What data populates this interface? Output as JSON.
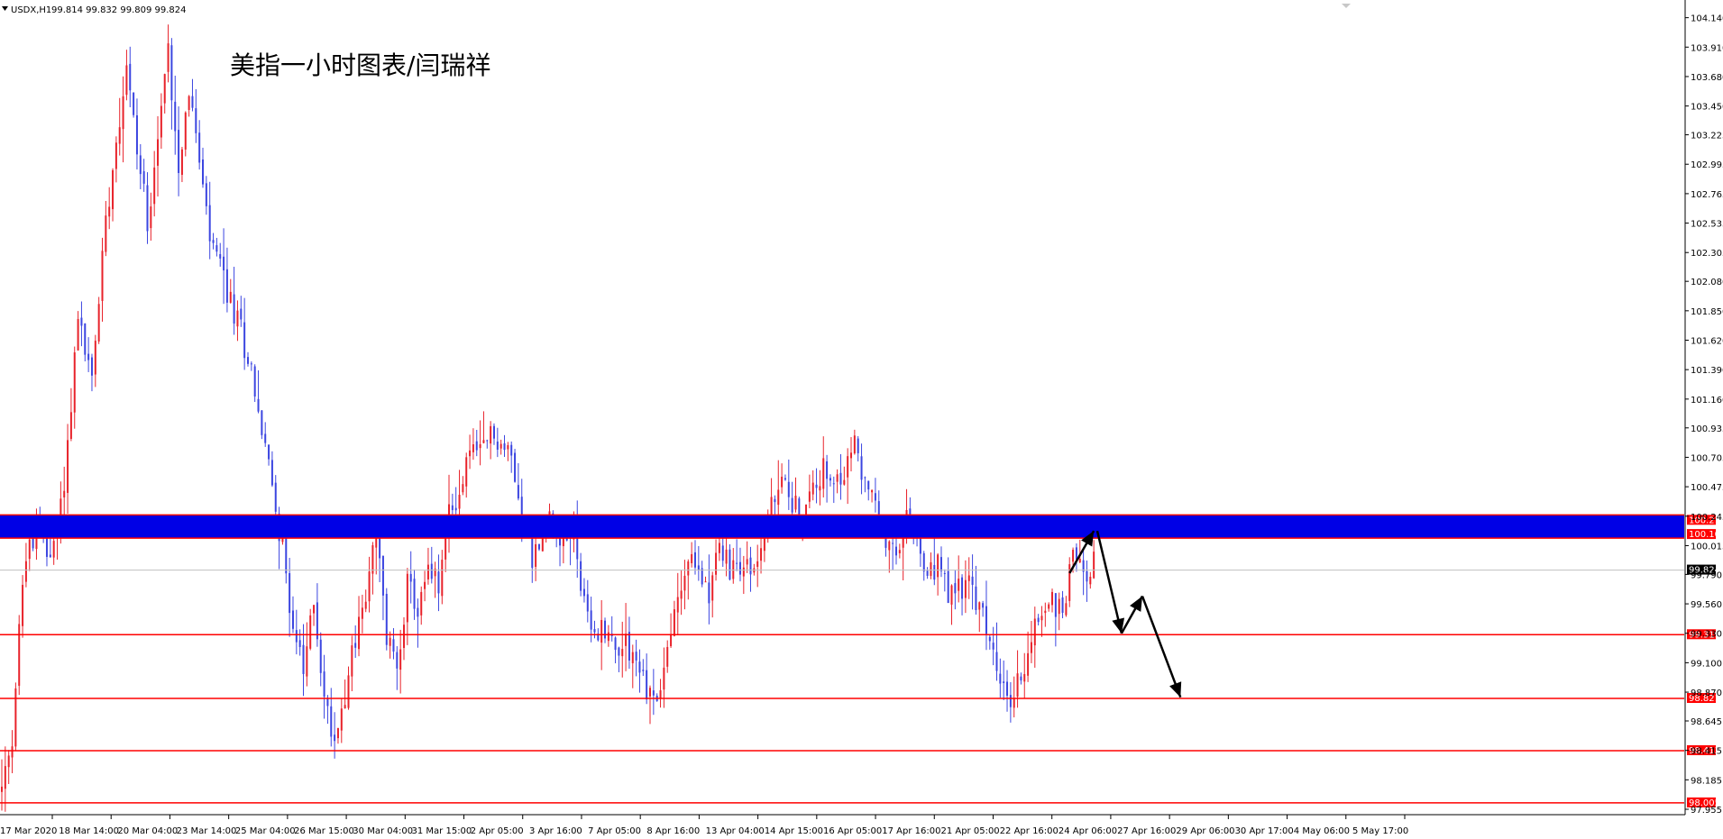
{
  "header": {
    "symbol": "USDX,H1",
    "ohlc": "99.814 99.832 99.809 99.824",
    "title": "美指一小时图表/闫瑞祥"
  },
  "colors": {
    "bull": "#e8222a",
    "bear": "#3b45e0",
    "zone": "#0000e6",
    "zone_border": "#ff0000",
    "level": "#ff0000",
    "arrow": "#000000",
    "current_label_bg": "#000000"
  },
  "chart_data": {
    "type": "candlestick",
    "symbol": "USDX",
    "timeframe": "H1",
    "ylim": [
      97.955,
      104.25
    ],
    "y_ticks": [
      104.14,
      103.91,
      103.68,
      103.45,
      103.225,
      102.995,
      102.765,
      102.535,
      102.305,
      102.08,
      101.85,
      101.62,
      101.39,
      101.16,
      100.935,
      100.705,
      100.475,
      100.245,
      100.015,
      99.79,
      99.56,
      99.33,
      99.1,
      98.87,
      98.645,
      98.415,
      98.185,
      97.955
    ],
    "x_tick_labels": [
      "17 Mar 2020",
      "18 Mar 14:00",
      "20 Mar 04:00",
      "23 Mar 14:00",
      "25 Mar 04:00",
      "26 Mar 15:00",
      "30 Mar 04:00",
      "31 Mar 15:00",
      "2 Apr 05:00",
      "3 Apr 16:00",
      "7 Apr 05:00",
      "8 Apr 16:00",
      "13 Apr 04:00",
      "14 Apr 15:00",
      "16 Apr 05:00",
      "17 Apr 16:00",
      "21 Apr 05:00",
      "22 Apr 16:00",
      "24 Apr 06:00",
      "27 Apr 16:00",
      "29 Apr 06:00",
      "30 Apr 17:00",
      "4 May 06:00",
      "5 May 17:00"
    ],
    "close_path": [
      [
        0,
        98.1
      ],
      [
        3,
        98.4
      ],
      [
        6,
        99.8
      ],
      [
        10,
        100.2
      ],
      [
        14,
        99.9
      ],
      [
        18,
        100.5
      ],
      [
        22,
        101.8
      ],
      [
        26,
        101.3
      ],
      [
        30,
        102.6
      ],
      [
        33,
        103.2
      ],
      [
        36,
        103.8
      ],
      [
        39,
        103.1
      ],
      [
        42,
        102.6
      ],
      [
        45,
        103.2
      ],
      [
        48,
        103.9
      ],
      [
        51,
        103.0
      ],
      [
        54,
        103.6
      ],
      [
        57,
        103.0
      ],
      [
        60,
        102.4
      ],
      [
        63,
        102.2
      ],
      [
        66,
        101.9
      ],
      [
        69,
        101.7
      ],
      [
        72,
        101.4
      ],
      [
        75,
        100.9
      ],
      [
        78,
        100.5
      ],
      [
        81,
        100.0
      ],
      [
        84,
        99.4
      ],
      [
        87,
        99.0
      ],
      [
        90,
        99.6
      ],
      [
        93,
        98.8
      ],
      [
        96,
        98.5
      ],
      [
        99,
        98.9
      ],
      [
        102,
        99.3
      ],
      [
        105,
        99.6
      ],
      [
        108,
        100.1
      ],
      [
        111,
        99.3
      ],
      [
        114,
        99.1
      ],
      [
        117,
        99.7
      ],
      [
        120,
        99.5
      ],
      [
        123,
        99.8
      ],
      [
        126,
        99.7
      ],
      [
        129,
        100.3
      ],
      [
        132,
        100.4
      ],
      [
        135,
        100.8
      ],
      [
        138,
        100.7
      ],
      [
        141,
        100.9
      ],
      [
        144,
        100.8
      ],
      [
        147,
        100.7
      ],
      [
        150,
        100.3
      ],
      [
        153,
        99.9
      ],
      [
        156,
        100.1
      ],
      [
        159,
        100.3
      ],
      [
        162,
        100.0
      ],
      [
        165,
        100.2
      ],
      [
        168,
        99.5
      ],
      [
        171,
        99.3
      ],
      [
        174,
        99.4
      ],
      [
        177,
        99.2
      ],
      [
        180,
        99.3
      ],
      [
        183,
        99.1
      ],
      [
        186,
        98.9
      ],
      [
        189,
        98.8
      ],
      [
        192,
        99.2
      ],
      [
        195,
        99.6
      ],
      [
        198,
        99.9
      ],
      [
        201,
        99.8
      ],
      [
        204,
        99.7
      ],
      [
        207,
        100.0
      ],
      [
        210,
        99.8
      ],
      [
        213,
        99.9
      ],
      [
        216,
        99.8
      ],
      [
        219,
        100.0
      ],
      [
        222,
        100.3
      ],
      [
        225,
        100.5
      ],
      [
        228,
        100.4
      ],
      [
        231,
        100.2
      ],
      [
        234,
        100.5
      ],
      [
        237,
        100.6
      ],
      [
        240,
        100.4
      ],
      [
        243,
        100.6
      ],
      [
        246,
        100.8
      ],
      [
        249,
        100.5
      ],
      [
        252,
        100.3
      ],
      [
        255,
        100.0
      ],
      [
        258,
        99.9
      ],
      [
        261,
        100.2
      ],
      [
        264,
        100.1
      ],
      [
        267,
        99.7
      ],
      [
        270,
        99.9
      ],
      [
        273,
        99.6
      ],
      [
        276,
        99.7
      ],
      [
        279,
        99.7
      ],
      [
        282,
        99.5
      ],
      [
        285,
        99.3
      ],
      [
        288,
        98.9
      ],
      [
        291,
        98.8
      ],
      [
        294,
        99.0
      ],
      [
        297,
        99.3
      ],
      [
        300,
        99.5
      ],
      [
        303,
        99.6
      ],
      [
        306,
        99.5
      ],
      [
        309,
        100.0
      ],
      [
        312,
        99.8
      ],
      [
        315,
        99.9
      ]
    ],
    "levels": [
      100.213,
      100.102,
      99.319,
      98.821,
      98.413,
      98.005
    ],
    "level_labels": [
      "100.213",
      "100.102",
      "99.319",
      "98.821",
      "98.413",
      "98.005"
    ],
    "zone": [
      100.102,
      100.213
    ],
    "current_price": 99.824,
    "current_label": "99.824",
    "forecast_arrows": [
      [
        [
          308,
          99.8
        ],
        [
          315,
          100.13
        ]
      ],
      [
        [
          316,
          100.13
        ],
        [
          323,
          99.33
        ]
      ],
      [
        [
          323,
          99.33
        ],
        [
          329,
          99.62
        ]
      ],
      [
        [
          329,
          99.62
        ],
        [
          340,
          98.83
        ]
      ]
    ],
    "bar_count": 316
  }
}
